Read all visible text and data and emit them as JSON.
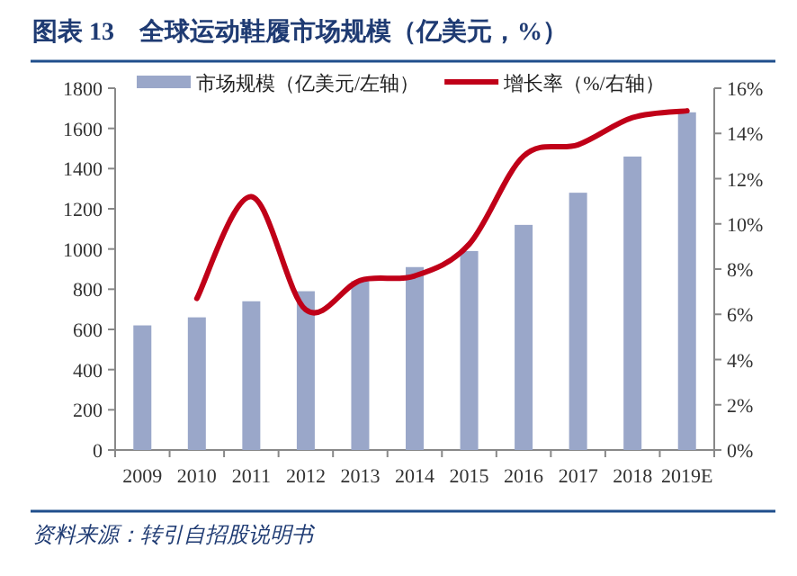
{
  "chart_data": {
    "type": "bar",
    "title": "图表 13　全球运动鞋履市场规模（亿美元，%）",
    "categories": [
      "2009",
      "2010",
      "2011",
      "2012",
      "2013",
      "2014",
      "2015",
      "2016",
      "2017",
      "2018",
      "2019E"
    ],
    "series": [
      {
        "name": "市场规模（亿美元/左轴）",
        "color": "#9aa7c9",
        "values": [
          620,
          660,
          740,
          790,
          840,
          910,
          990,
          1120,
          1280,
          1460,
          1680
        ]
      },
      {
        "name": "增长率（%/右轴）",
        "type": "line",
        "axis": "y2",
        "color": "#c00018",
        "values": [
          null,
          6.7,
          11.2,
          6.2,
          7.5,
          7.7,
          9.1,
          13.0,
          13.5,
          14.7,
          15.0
        ]
      }
    ],
    "ylim": [
      0,
      1800
    ],
    "yticks": [
      0,
      200,
      400,
      600,
      800,
      1000,
      1200,
      1400,
      1600,
      1800
    ],
    "y2lim": [
      0,
      16
    ],
    "y2ticks": [
      {
        "value": 0,
        "label": "0%"
      },
      {
        "value": 2,
        "label": "2%"
      },
      {
        "value": 4,
        "label": "4%"
      },
      {
        "value": 6,
        "label": "6%"
      },
      {
        "value": 8,
        "label": "8%"
      },
      {
        "value": 10,
        "label": "10%"
      },
      {
        "value": 12,
        "label": "12%"
      },
      {
        "value": 14,
        "label": "14%"
      },
      {
        "value": 16,
        "label": "16%"
      }
    ],
    "legend": "top",
    "grid": false,
    "annotations": [
      "资料来源：转引自招股说明书"
    ]
  }
}
